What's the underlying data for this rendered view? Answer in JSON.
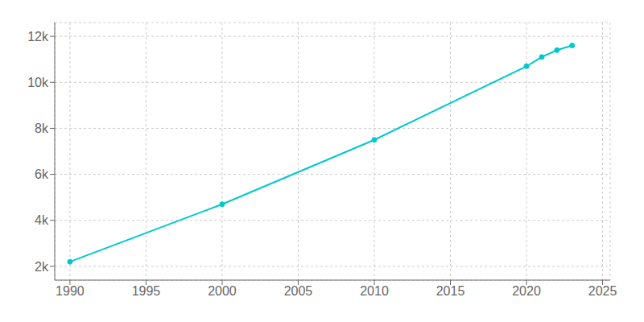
{
  "chart_data": {
    "type": "line",
    "x": [
      1990,
      2000,
      2010,
      2020,
      2021,
      2022,
      2023
    ],
    "values": [
      2200,
      4700,
      7500,
      10700,
      11100,
      11400,
      11600
    ],
    "color": "#00c8cc",
    "marker": "circle",
    "xlim": [
      1989,
      2025.5
    ],
    "ylim": [
      1400,
      12600
    ],
    "xticks": [
      1990,
      1995,
      2000,
      2005,
      2010,
      2015,
      2020,
      2025
    ],
    "yticks": [
      {
        "value": 2000,
        "label": "2k"
      },
      {
        "value": 4000,
        "label": "4k"
      },
      {
        "value": 6000,
        "label": "6k"
      },
      {
        "value": 8000,
        "label": "8k"
      },
      {
        "value": 10000,
        "label": "10k"
      },
      {
        "value": 12000,
        "label": "12k"
      }
    ],
    "grid": true
  }
}
